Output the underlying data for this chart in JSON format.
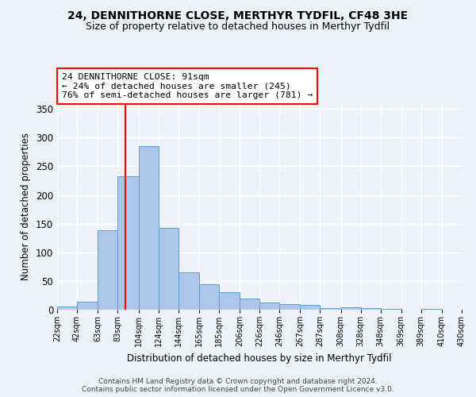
{
  "title1": "24, DENNITHORNE CLOSE, MERTHYR TYDFIL, CF48 3HE",
  "title2": "Size of property relative to detached houses in Merthyr Tydfil",
  "xlabel": "Distribution of detached houses by size in Merthyr Tydfil",
  "ylabel": "Number of detached properties",
  "bin_labels": [
    "22sqm",
    "42sqm",
    "63sqm",
    "83sqm",
    "104sqm",
    "124sqm",
    "144sqm",
    "165sqm",
    "185sqm",
    "206sqm",
    "226sqm",
    "246sqm",
    "267sqm",
    "287sqm",
    "308sqm",
    "328sqm",
    "348sqm",
    "369sqm",
    "389sqm",
    "410sqm",
    "430sqm"
  ],
  "bar_heights": [
    5,
    14,
    138,
    233,
    285,
    143,
    65,
    45,
    31,
    20,
    13,
    10,
    8,
    3,
    4,
    3,
    2,
    0,
    2,
    0,
    1
  ],
  "bar_color": "#aec6e8",
  "bar_edge_color": "#5a9fd4",
  "red_line_x": 91,
  "bin_edges_numeric": [
    22,
    42,
    63,
    83,
    104,
    124,
    144,
    165,
    185,
    206,
    226,
    246,
    267,
    287,
    308,
    328,
    348,
    369,
    389,
    410,
    430
  ],
  "ylim": [
    0,
    360
  ],
  "yticks": [
    0,
    50,
    100,
    150,
    200,
    250,
    300,
    350
  ],
  "annotation_text": "24 DENNITHORNE CLOSE: 91sqm\n← 24% of detached houses are smaller (245)\n76% of semi-detached houses are larger (781) →",
  "annotation_box_color": "white",
  "annotation_box_edge": "red",
  "footer": "Contains HM Land Registry data © Crown copyright and database right 2024.\nContains public sector information licensed under the Open Government Licence v3.0.",
  "background_color": "#eef2f8",
  "grid_color": "white"
}
